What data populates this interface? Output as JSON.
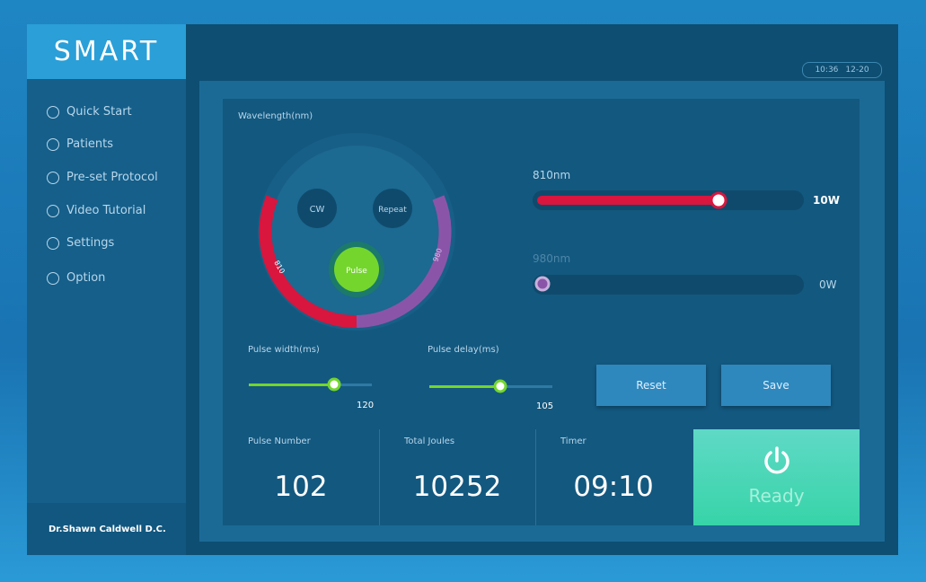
{
  "brand": "SMART",
  "menu": [
    "Quick Start",
    "Patients",
    "Pre-set Protocol",
    "Video Tutorial",
    "Settings",
    "Option"
  ],
  "user": "Dr.Shawn Caldwell D.C.",
  "clock": {
    "time": "10:36",
    "date": "12-20"
  },
  "wavelength": {
    "title": "Wavelength(nm)",
    "modes": [
      "CW",
      "Repeat",
      "Pulse"
    ],
    "arc_labels": [
      "810",
      "980"
    ]
  },
  "lasers": [
    {
      "label": "810nm",
      "power": "10W"
    },
    {
      "label": "980nm",
      "power": "0W"
    }
  ],
  "pulse_width": {
    "label": "Pulse width(ms)",
    "value": "120"
  },
  "pulse_delay": {
    "label": "Pulse delay(ms)",
    "value": "105"
  },
  "buttons": [
    "Reset",
    "Save"
  ],
  "stats": [
    {
      "label": "Pulse Number",
      "value": "102"
    },
    {
      "label": "Total Joules",
      "value": "10252"
    },
    {
      "label": "Timer",
      "value": "09:10"
    }
  ],
  "status": "Ready"
}
